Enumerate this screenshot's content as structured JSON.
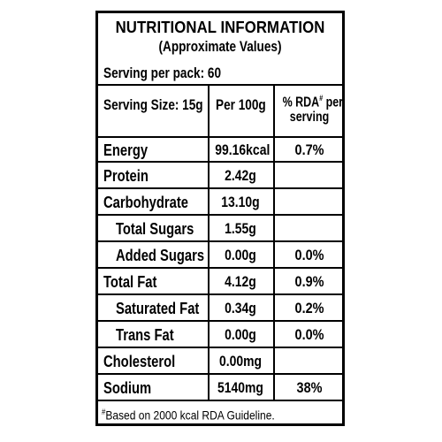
{
  "label": {
    "title": "NUTRITIONAL INFORMATION",
    "subtitle": "(Approximate Values)",
    "serving_per_pack": "Serving per pack: 60",
    "header": {
      "serving_size": "Serving Size: 15g",
      "per100g": "Per 100g",
      "rda_mark": "#",
      "rda_line1": "% RDA",
      "rda_line1_tail": " per",
      "rda_line2": "serving"
    },
    "rows": [
      {
        "name": "Energy",
        "per100g": "99.16kcal",
        "rda": "0.7%"
      },
      {
        "name": "Protein",
        "per100g": "2.42g",
        "rda": ""
      },
      {
        "name": "Carbohydrate",
        "per100g": "13.10g",
        "rda": ""
      },
      {
        "name": "Total Sugars",
        "per100g": "1.55g",
        "rda": ""
      },
      {
        "name": "Added Sugars",
        "per100g": "0.00g",
        "rda": "0.0%"
      },
      {
        "name": "Total Fat",
        "per100g": "4.12g",
        "rda": "0.9%"
      },
      {
        "name": "Saturated Fat",
        "per100g": "0.34g",
        "rda": "0.2%"
      },
      {
        "name": "Trans Fat",
        "per100g": "0.00g",
        "rda": "0.0%"
      },
      {
        "name": "Cholesterol",
        "per100g": "0.00mg",
        "rda": ""
      },
      {
        "name": "Sodium",
        "per100g": "5140mg",
        "rda": "38%"
      }
    ],
    "footnote_mark": "#",
    "footnote": "Based on 2000 kcal RDA Guideline."
  }
}
